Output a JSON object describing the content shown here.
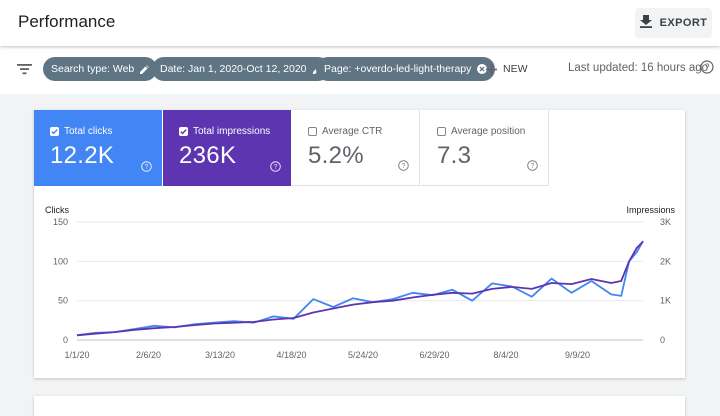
{
  "header": {
    "title": "Performance",
    "export_label": "EXPORT"
  },
  "filters": {
    "chips": [
      "Search type: Web",
      "Date: Jan 1, 2020-Oct 12, 2020",
      "Page: +overdo-led-light-therapy"
    ],
    "new_label": "NEW",
    "last_updated": "Last updated: 16 hours ago"
  },
  "metrics": [
    {
      "label": "Total clicks",
      "value": "12.2K",
      "checked": true,
      "color": "#4285f4"
    },
    {
      "label": "Total impressions",
      "value": "236K",
      "checked": true,
      "color": "#5e35b1"
    },
    {
      "label": "Average CTR",
      "value": "5.2%",
      "checked": false
    },
    {
      "label": "Average position",
      "value": "7.3",
      "checked": false
    }
  ],
  "chart_data": {
    "type": "line",
    "left_axis_label": "Clicks",
    "right_axis_label": "Impressions",
    "left_ticks": [
      "150",
      "100",
      "50",
      "0"
    ],
    "right_ticks": [
      "3K",
      "2K",
      "1K",
      "0"
    ],
    "left_ylim": [
      0,
      150
    ],
    "right_ylim": [
      0,
      3000
    ],
    "x_ticks": [
      "1/1/20",
      "2/6/20",
      "3/13/20",
      "4/18/20",
      "5/24/20",
      "6/29/20",
      "8/4/20",
      "9/9/20"
    ],
    "gridlines": true,
    "series": [
      {
        "name": "Total clicks",
        "axis": "left",
        "color": "#4285f4",
        "points": [
          {
            "x": "2020-01-01",
            "y": 6
          },
          {
            "x": "2020-01-10",
            "y": 9
          },
          {
            "x": "2020-01-20",
            "y": 10
          },
          {
            "x": "2020-01-30",
            "y": 14
          },
          {
            "x": "2020-02-09",
            "y": 18
          },
          {
            "x": "2020-02-19",
            "y": 16
          },
          {
            "x": "2020-02-29",
            "y": 20
          },
          {
            "x": "2020-03-10",
            "y": 22
          },
          {
            "x": "2020-03-20",
            "y": 24
          },
          {
            "x": "2020-03-30",
            "y": 22
          },
          {
            "x": "2020-04-09",
            "y": 30
          },
          {
            "x": "2020-04-19",
            "y": 27
          },
          {
            "x": "2020-04-29",
            "y": 52
          },
          {
            "x": "2020-05-09",
            "y": 42
          },
          {
            "x": "2020-05-19",
            "y": 53
          },
          {
            "x": "2020-05-29",
            "y": 48
          },
          {
            "x": "2020-06-08",
            "y": 52
          },
          {
            "x": "2020-06-18",
            "y": 60
          },
          {
            "x": "2020-06-28",
            "y": 57
          },
          {
            "x": "2020-07-08",
            "y": 64
          },
          {
            "x": "2020-07-18",
            "y": 50
          },
          {
            "x": "2020-07-28",
            "y": 72
          },
          {
            "x": "2020-08-07",
            "y": 68
          },
          {
            "x": "2020-08-17",
            "y": 55
          },
          {
            "x": "2020-08-27",
            "y": 78
          },
          {
            "x": "2020-09-06",
            "y": 60
          },
          {
            "x": "2020-09-16",
            "y": 75
          },
          {
            "x": "2020-09-26",
            "y": 58
          },
          {
            "x": "2020-10-01",
            "y": 56
          },
          {
            "x": "2020-10-05",
            "y": 100
          },
          {
            "x": "2020-10-09",
            "y": 112
          },
          {
            "x": "2020-10-12",
            "y": 126
          }
        ]
      },
      {
        "name": "Total impressions",
        "axis": "right",
        "color": "#5e35b1",
        "points": [
          {
            "x": "2020-01-01",
            "y": 120
          },
          {
            "x": "2020-01-10",
            "y": 160
          },
          {
            "x": "2020-01-20",
            "y": 200
          },
          {
            "x": "2020-01-30",
            "y": 260
          },
          {
            "x": "2020-02-09",
            "y": 300
          },
          {
            "x": "2020-02-19",
            "y": 330
          },
          {
            "x": "2020-02-29",
            "y": 380
          },
          {
            "x": "2020-03-10",
            "y": 420
          },
          {
            "x": "2020-03-20",
            "y": 440
          },
          {
            "x": "2020-03-30",
            "y": 460
          },
          {
            "x": "2020-04-09",
            "y": 520
          },
          {
            "x": "2020-04-19",
            "y": 560
          },
          {
            "x": "2020-04-29",
            "y": 700
          },
          {
            "x": "2020-05-09",
            "y": 800
          },
          {
            "x": "2020-05-19",
            "y": 900
          },
          {
            "x": "2020-05-29",
            "y": 960
          },
          {
            "x": "2020-06-08",
            "y": 1000
          },
          {
            "x": "2020-06-18",
            "y": 1080
          },
          {
            "x": "2020-06-28",
            "y": 1150
          },
          {
            "x": "2020-07-08",
            "y": 1200
          },
          {
            "x": "2020-07-18",
            "y": 1180
          },
          {
            "x": "2020-07-28",
            "y": 1300
          },
          {
            "x": "2020-08-07",
            "y": 1350
          },
          {
            "x": "2020-08-17",
            "y": 1300
          },
          {
            "x": "2020-08-27",
            "y": 1450
          },
          {
            "x": "2020-09-06",
            "y": 1420
          },
          {
            "x": "2020-09-16",
            "y": 1550
          },
          {
            "x": "2020-09-26",
            "y": 1450
          },
          {
            "x": "2020-10-01",
            "y": 1500
          },
          {
            "x": "2020-10-05",
            "y": 2000
          },
          {
            "x": "2020-10-09",
            "y": 2350
          },
          {
            "x": "2020-10-12",
            "y": 2500
          }
        ]
      }
    ]
  }
}
